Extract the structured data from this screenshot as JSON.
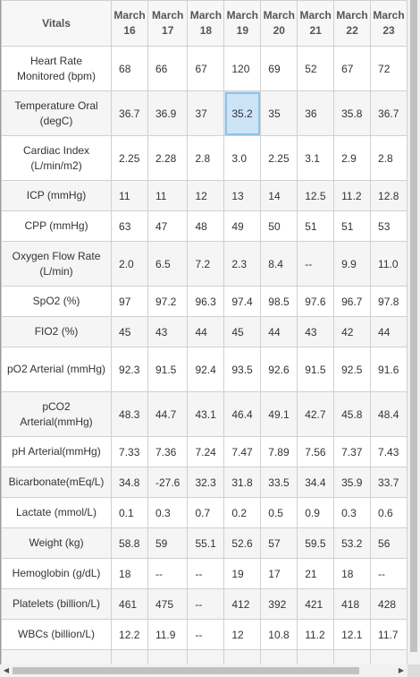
{
  "table": {
    "corner_header": "Vitals",
    "columns": [
      "March 16",
      "March 17",
      "March 18",
      "March 19",
      "March 20",
      "March 21",
      "March 22",
      "March 23"
    ],
    "rows": [
      {
        "label": "Heart Rate Monitored (bpm)",
        "values": [
          "68",
          "66",
          "67",
          "120",
          "69",
          "52",
          "67",
          "72"
        ]
      },
      {
        "label": "Temperature Oral (degC)",
        "values": [
          "36.7",
          "36.9",
          "37",
          "35.2",
          "35",
          "36",
          "35.8",
          "36.7"
        ]
      },
      {
        "label": "Cardiac Index (L/min/m2)",
        "values": [
          "2.25",
          "2.28",
          "2.8",
          "3.0",
          "2.25",
          "3.1",
          "2.9",
          "2.8"
        ]
      },
      {
        "label": "ICP (mmHg)",
        "values": [
          "11",
          "11",
          "12",
          "13",
          "14",
          "12.5",
          "11.2",
          "12.8"
        ]
      },
      {
        "label": "CPP (mmHg)",
        "values": [
          "63",
          "47",
          "48",
          "49",
          "50",
          "51",
          "51",
          "53"
        ]
      },
      {
        "label": "Oxygen Flow Rate (L/min)",
        "values": [
          "2.0",
          "6.5",
          "7.2",
          "2.3",
          "8.4",
          "--",
          "9.9",
          "11.0"
        ]
      },
      {
        "label": "SpO2 (%)",
        "values": [
          "97",
          "97.2",
          "96.3",
          "97.4",
          "98.5",
          "97.6",
          "96.7",
          "97.8"
        ]
      },
      {
        "label": "FIO2 (%)",
        "values": [
          "45",
          "43",
          "44",
          "45",
          "44",
          "43",
          "42",
          "44"
        ]
      },
      {
        "label": "pO2 Arterial (mmHg)",
        "values": [
          "92.3",
          "91.5",
          "92.4",
          "93.5",
          "92.6",
          "91.5",
          "92.5",
          "91.6"
        ]
      },
      {
        "label": "pCO2 Arterial(mmHg)",
        "values": [
          "48.3",
          "44.7",
          "43.1",
          "46.4",
          "49.1",
          "42.7",
          "45.8",
          "48.4"
        ]
      },
      {
        "label": "pH Arterial(mmHg)",
        "values": [
          "7.33",
          "7.36",
          "7.24",
          "7.47",
          "7.89",
          "7.56",
          "7.37",
          "7.43"
        ]
      },
      {
        "label": "Bicarbonate(mEq/L)",
        "values": [
          "34.8",
          "-27.6",
          "32.3",
          "31.8",
          "33.5",
          "34.4",
          "35.9",
          "33.7"
        ]
      },
      {
        "label": "Lactate (mmol/L)",
        "values": [
          "0.1",
          "0.3",
          "0.7",
          "0.2",
          "0.5",
          "0.9",
          "0.3",
          "0.6"
        ]
      },
      {
        "label": "Weight (kg)",
        "values": [
          "58.8",
          "59",
          "55.1",
          "52.6",
          "57",
          "59.5",
          "53.2",
          "56"
        ]
      },
      {
        "label": "Hemoglobin (g/dL)",
        "values": [
          "18",
          "--",
          "--",
          "19",
          "17",
          "21",
          "18",
          "--"
        ]
      },
      {
        "label": "Platelets (billion/L)",
        "values": [
          "461",
          "475",
          "--",
          "412",
          "392",
          "421",
          "418",
          "428"
        ]
      },
      {
        "label": "WBCs (billion/L)",
        "values": [
          "12.2",
          "11.9",
          "--",
          "12",
          "10.8",
          "11.2",
          "12.1",
          "11.7"
        ]
      },
      {
        "label": "",
        "values": [
          "",
          "",
          "",
          "",
          "",
          "",
          "",
          ""
        ]
      }
    ],
    "selected_cell": {
      "row": 1,
      "col": 3
    }
  },
  "scrollbars": {
    "left_arrow": "◀",
    "right_arrow": "▶"
  }
}
